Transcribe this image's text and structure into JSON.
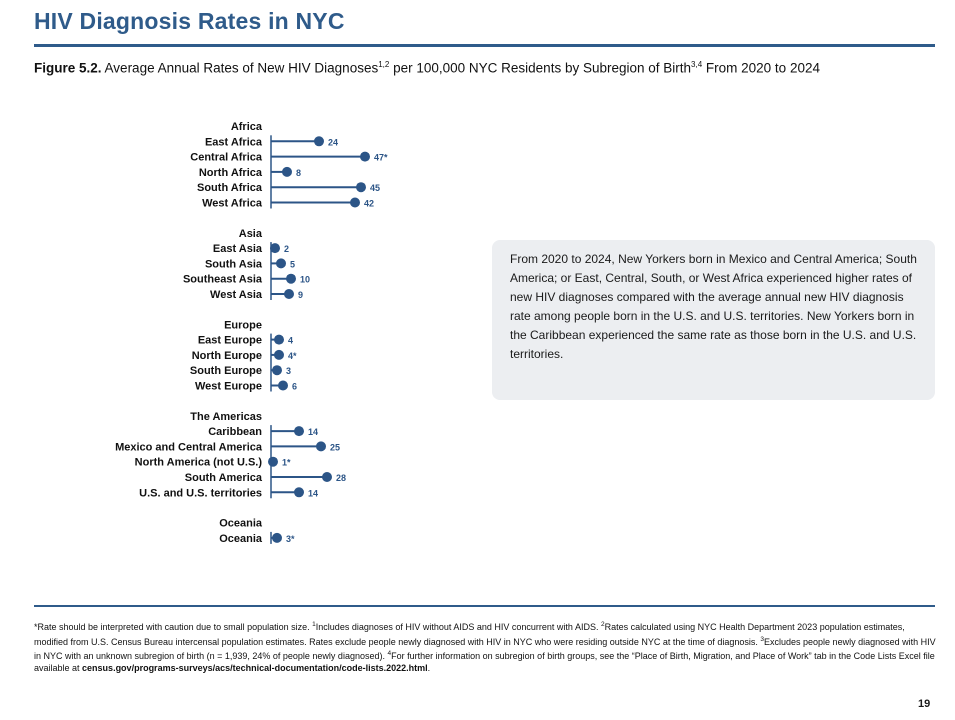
{
  "page": {
    "title": "HIV Diagnosis Rates in NYC",
    "page_number": "19"
  },
  "figure": {
    "label": "Figure 5.2.",
    "caption_part1": "Average Annual Rates of New HIV Diagnoses",
    "caption_sup1": "1,2",
    "caption_part2": " per 100,000 NYC Residents by Subregion of Birth",
    "caption_sup2": "3,4",
    "caption_part3": " From 2020 to 2024"
  },
  "callout": {
    "text": "From 2020 to 2024, New Yorkers born in Mexico and Central America; South America; or East, Central, South, or West Africa experienced higher rates of new HIV diagnoses compared with the average annual new HIV diagnosis rate among people born in the U.S. and U.S. territories. New Yorkers born in the Caribbean experienced the same rate as those born in the U.S. and U.S. territories."
  },
  "footnotes": {
    "f0": "*Rate should be interpreted with caution due to small population size. ",
    "f1_sup": "1",
    "f1": "Includes diagnoses of HIV without AIDS and HIV concurrent with AIDS. ",
    "f2_sup": "2",
    "f2": "Rates calculated using NYC Health Department 2023 population estimates, modified from U.S. Census Bureau intercensal population estimates. Rates exclude people newly diagnosed with HIV in NYC who were residing outside NYC at the time of diagnosis. ",
    "f3_sup": "3",
    "f3": "Excludes people newly diagnosed with HIV in NYC with an unknown subregion of birth (n = 1,939, 24% of people newly diagnosed). ",
    "f4_sup": "4",
    "f4": "For further information on subregion of birth groups, see the “Place of Birth, Migration, and Place of Work” tab in the Code Lists Excel file available at ",
    "link": "census.gov/programs-surveys/acs/technical-documentation/code-lists.2022.html",
    "end": "."
  },
  "colors": {
    "accent": "#2f5b8a",
    "marker": "#2c5587",
    "callout_bg": "#eceef1"
  },
  "chart_data": {
    "type": "lollipop",
    "orientation": "horizontal",
    "xlim": [
      0,
      50
    ],
    "groups": [
      {
        "name": "Africa",
        "items": [
          {
            "label": "East Africa",
            "value": 24,
            "display": "24"
          },
          {
            "label": "Central Africa",
            "value": 47,
            "display": "47*"
          },
          {
            "label": "North Africa",
            "value": 8,
            "display": "8"
          },
          {
            "label": "South Africa",
            "value": 45,
            "display": "45"
          },
          {
            "label": "West Africa",
            "value": 42,
            "display": "42"
          }
        ]
      },
      {
        "name": "Asia",
        "items": [
          {
            "label": "East Asia",
            "value": 2,
            "display": "2"
          },
          {
            "label": "South Asia",
            "value": 5,
            "display": "5"
          },
          {
            "label": "Southeast Asia",
            "value": 10,
            "display": "10"
          },
          {
            "label": "West Asia",
            "value": 9,
            "display": "9"
          }
        ]
      },
      {
        "name": "Europe",
        "items": [
          {
            "label": "East Europe",
            "value": 4,
            "display": "4"
          },
          {
            "label": "North Europe",
            "value": 4,
            "display": "4*"
          },
          {
            "label": "South Europe",
            "value": 3,
            "display": "3"
          },
          {
            "label": "West Europe",
            "value": 6,
            "display": "6"
          }
        ]
      },
      {
        "name": "The Americas",
        "items": [
          {
            "label": "Caribbean",
            "value": 14,
            "display": "14"
          },
          {
            "label": "Mexico and Central America",
            "value": 25,
            "display": "25"
          },
          {
            "label": "North America (not U.S.)",
            "value": 1,
            "display": "1*"
          },
          {
            "label": "South America",
            "value": 28,
            "display": "28"
          },
          {
            "label": "U.S. and U.S. territories",
            "value": 14,
            "display": "14"
          }
        ]
      },
      {
        "name": "Oceania",
        "items": [
          {
            "label": "Oceania",
            "value": 3,
            "display": "3*"
          }
        ]
      }
    ]
  }
}
